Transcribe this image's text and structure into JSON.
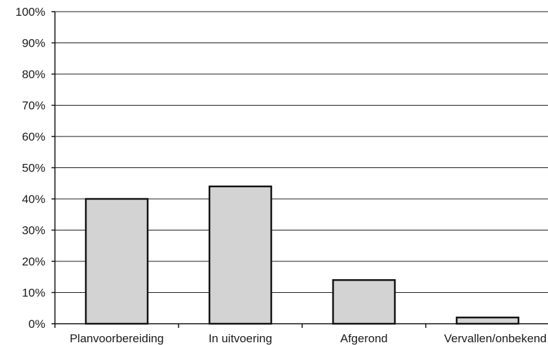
{
  "chart_data": {
    "type": "bar",
    "title": "",
    "xlabel": "",
    "ylabel": "",
    "categories": [
      "Planvoorbereiding",
      "In uitvoering",
      "Afgerond",
      "Vervallen/onbekend"
    ],
    "values": [
      40,
      44,
      14,
      2
    ],
    "value_unit": "%",
    "ylim": [
      0,
      100
    ],
    "y_ticks": [
      "0%",
      "10%",
      "20%",
      "30%",
      "40%",
      "50%",
      "60%",
      "70%",
      "80%",
      "90%",
      "100%"
    ],
    "grid": "horizontal",
    "legend": "none",
    "colors": {
      "bar_fill": "#d3d3d3",
      "bar_stroke": "#111111",
      "grid": "#1a1a1a",
      "axis": "#111111"
    }
  }
}
